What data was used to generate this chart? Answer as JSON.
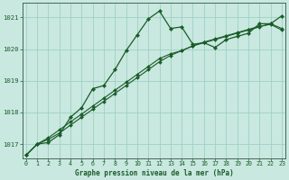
{
  "title": "Graphe pression niveau de la mer (hPa)",
  "background_color": "#c8e8e0",
  "plot_bg_color": "#c8e8e0",
  "grid_color": "#99ccbb",
  "line_color": "#1a5c28",
  "xlim": [
    -0.3,
    23.3
  ],
  "ylim": [
    1016.55,
    1021.45
  ],
  "yticks": [
    1017,
    1018,
    1019,
    1020,
    1021
  ],
  "xticks": [
    0,
    1,
    2,
    3,
    4,
    5,
    6,
    7,
    8,
    9,
    10,
    11,
    12,
    13,
    14,
    15,
    16,
    17,
    18,
    19,
    20,
    21,
    22,
    23
  ],
  "series1_x": [
    0,
    1,
    2,
    3,
    4,
    5,
    6,
    7,
    8,
    9,
    10,
    11,
    12,
    13,
    14,
    15,
    16,
    17,
    18,
    19,
    20,
    21,
    22,
    23
  ],
  "series1_y": [
    1016.65,
    1017.0,
    1017.05,
    1017.3,
    1017.85,
    1018.15,
    1018.75,
    1018.85,
    1019.35,
    1019.95,
    1020.45,
    1020.95,
    1021.2,
    1020.65,
    1020.7,
    1020.15,
    1020.2,
    1020.05,
    1020.3,
    1020.4,
    1020.5,
    1020.8,
    1020.8,
    1021.05
  ],
  "series2_x": [
    0,
    1,
    2,
    3,
    4,
    5,
    6,
    7,
    8,
    9,
    10,
    11,
    12,
    13,
    14,
    15,
    16,
    17,
    18,
    19,
    20,
    21,
    22,
    23
  ],
  "series2_y": [
    1016.65,
    1017.0,
    1017.2,
    1017.45,
    1017.7,
    1017.95,
    1018.2,
    1018.45,
    1018.7,
    1018.95,
    1019.2,
    1019.45,
    1019.7,
    1019.85,
    1019.95,
    1020.1,
    1020.2,
    1020.3,
    1020.4,
    1020.5,
    1020.6,
    1020.7,
    1020.8,
    1020.65
  ],
  "series3_x": [
    0,
    1,
    2,
    3,
    4,
    5,
    6,
    7,
    8,
    9,
    10,
    11,
    12,
    13,
    14,
    15,
    16,
    17,
    18,
    19,
    20,
    21,
    22,
    23
  ],
  "series3_y": [
    1016.65,
    1017.0,
    1017.15,
    1017.35,
    1017.6,
    1017.85,
    1018.1,
    1018.35,
    1018.6,
    1018.85,
    1019.1,
    1019.35,
    1019.6,
    1019.8,
    1019.95,
    1020.1,
    1020.22,
    1020.32,
    1020.42,
    1020.52,
    1020.62,
    1020.72,
    1020.78,
    1020.6
  ]
}
